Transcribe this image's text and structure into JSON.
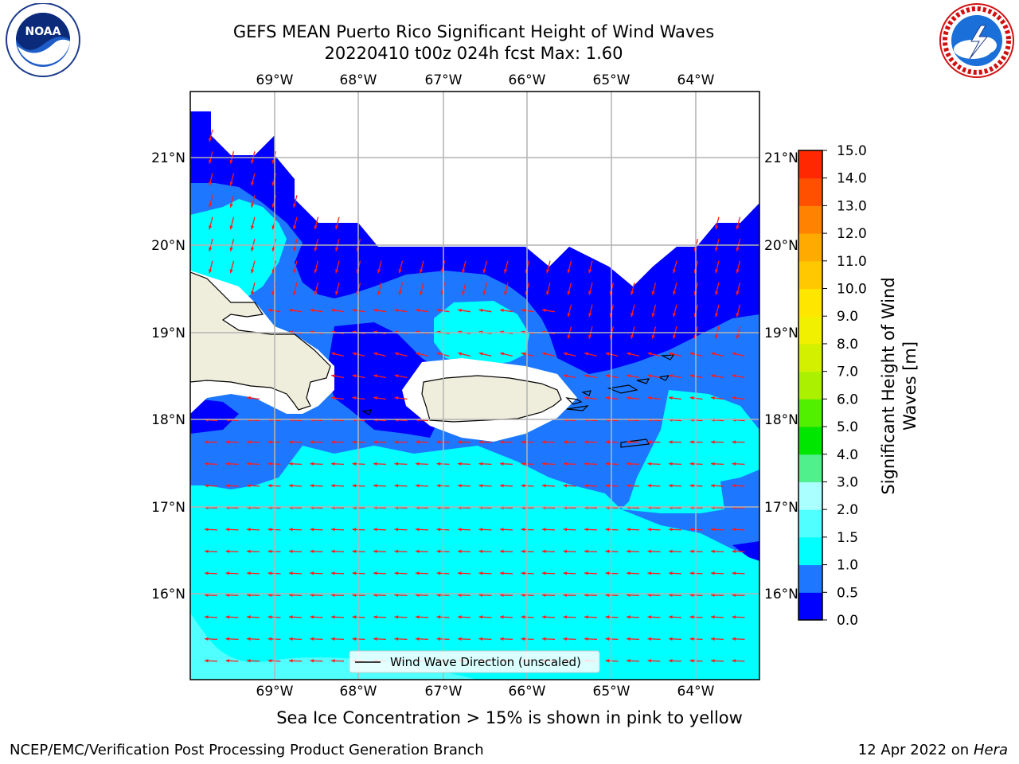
{
  "header": {
    "title_line1": "GEFS MEAN Puerto Rico Significant Height of Wind Waves",
    "title_line2": "20220410 t00z 024h fcst   Max: 1.60"
  },
  "logos": {
    "left": {
      "text": "NOAA",
      "ring_text_top": "NATIONAL OCEANIC AND ATMOSPHERIC ADMINISTRATION",
      "ring_text_bottom": "U.S. DEPARTMENT OF COMMERCE"
    },
    "right": {
      "ring_text": "NATIONAL WEATHER SERVICE"
    }
  },
  "map": {
    "lon_labels": [
      "69°W",
      "68°W",
      "67°W",
      "66°W",
      "65°W",
      "64°W"
    ],
    "lat_labels": [
      "21°N",
      "20°N",
      "19°N",
      "18°N",
      "17°N",
      "16°N"
    ],
    "legend_label": "Wind Wave Direction (unscaled)"
  },
  "colorbar": {
    "label_line1": "Significant Height of Wind",
    "label_line2": "Waves [m]",
    "ticks": [
      "0.0",
      "0.5",
      "1.0",
      "1.5",
      "2.0",
      "3.0",
      "4.0",
      "5.0",
      "6.0",
      "7.0",
      "8.0",
      "9.0",
      "10.0",
      "11.0",
      "12.0",
      "13.0",
      "14.0",
      "15.0"
    ],
    "colors": [
      "#0000ff",
      "#1e78ff",
      "#00ffff",
      "#50ffff",
      "#aaffff",
      "#50f08c",
      "#00e600",
      "#50f000",
      "#aaf000",
      "#d2f000",
      "#f0f000",
      "#ffe600",
      "#ffc800",
      "#ffaa00",
      "#ff8200",
      "#ff5000",
      "#ff2800"
    ]
  },
  "colors": {
    "land": "#efeddc",
    "arrow": "#ff1a1a",
    "grid": "#b4b4b4",
    "deep_blue": "#0000ff",
    "mid_blue": "#1e78ff",
    "cyan": "#00ffff",
    "light_cyan": "#50ffff"
  },
  "caption": "Sea Ice Concentration > 15% is shown in pink to yellow",
  "footer": {
    "left": "NCEP/EMC/Verification Post Processing Product Generation Branch",
    "right_date": "12 Apr 2022 on ",
    "right_host": "Hera"
  }
}
